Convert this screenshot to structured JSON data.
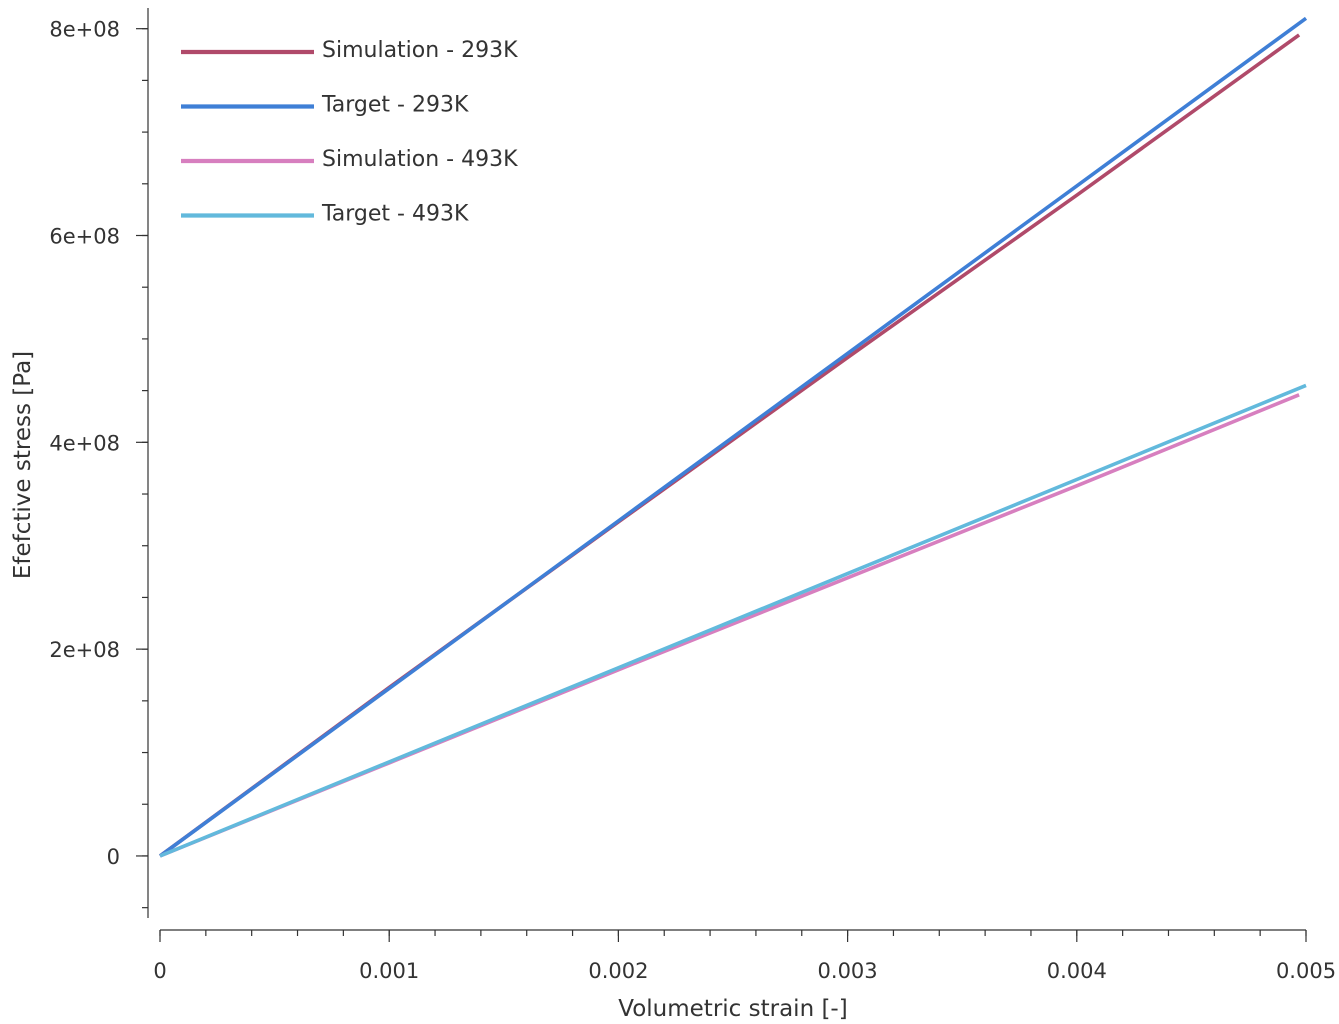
{
  "chart_data": {
    "type": "line",
    "title": "",
    "xlabel": "Volumetric strain [-]",
    "ylabel": "Efefctive stress [Pa]",
    "xlim": [
      0,
      0.005
    ],
    "ylim": [
      -60000000,
      820000000
    ],
    "x_ticks": [
      0,
      0.001,
      0.002,
      0.003,
      0.004,
      0.005
    ],
    "x_tick_labels": [
      "0",
      "0.001",
      "0.002",
      "0.003",
      "0.004",
      "0.005"
    ],
    "x_minor_step": 0.0002,
    "y_ticks": [
      0,
      200000000,
      400000000,
      600000000,
      800000000
    ],
    "y_tick_labels": [
      "0",
      "2e+08",
      "4e+08",
      "6e+08",
      "8e+08"
    ],
    "y_minor_step": 50000000,
    "grid": false,
    "legend_position": "top-left",
    "series": [
      {
        "name": "Simulation - 293K",
        "color": "#b04a6a",
        "x": [
          0,
          0.001,
          0.002,
          0.003,
          0.004,
          0.00497
        ],
        "y": [
          0,
          163000000,
          323000000,
          482000000,
          639000000,
          794000000
        ]
      },
      {
        "name": "Target - 293K",
        "color": "#3f7fd6",
        "x": [
          0,
          0.001,
          0.002,
          0.003,
          0.004,
          0.005
        ],
        "y": [
          0,
          162000000,
          324000000,
          486000000,
          648000000,
          810000000
        ]
      },
      {
        "name": "Simulation - 493K",
        "color": "#d77fbf",
        "x": [
          0,
          0.001,
          0.002,
          0.003,
          0.004,
          0.00497
        ],
        "y": [
          0,
          90000000,
          180000000,
          269000000,
          358000000,
          446000000
        ]
      },
      {
        "name": "Target - 493K",
        "color": "#62b9dc",
        "x": [
          0,
          0.001,
          0.002,
          0.003,
          0.004,
          0.005
        ],
        "y": [
          0,
          91000000,
          182000000,
          273000000,
          364000000,
          455000000
        ]
      }
    ]
  }
}
